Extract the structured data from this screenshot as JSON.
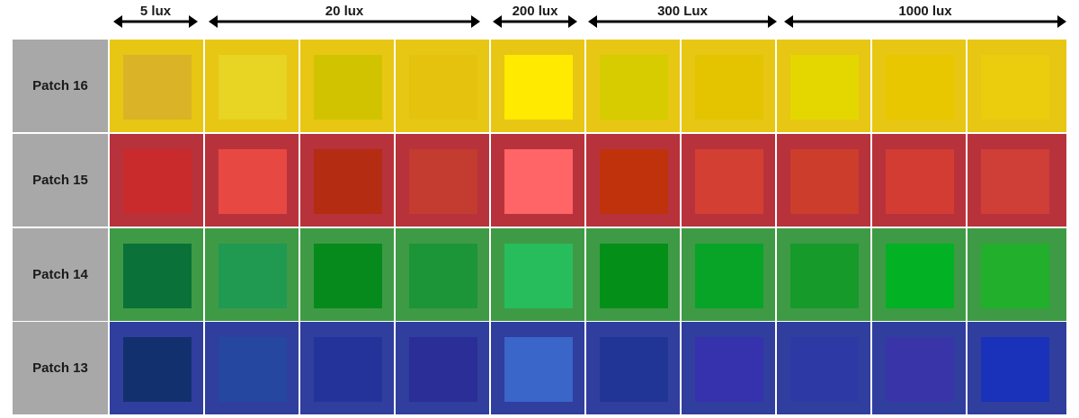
{
  "header": {
    "groups": [
      {
        "label": "5 lux"
      },
      {
        "label": "20 lux"
      },
      {
        "label": "200 lux"
      },
      {
        "label": "300 Lux"
      },
      {
        "label": "1000 lux"
      }
    ]
  },
  "rows": [
    {
      "label": "Patch 16",
      "background": "#e8c614",
      "swatches": [
        "#dab326",
        "#e8d422",
        "#d2c300",
        "#e4c20e",
        "#ffea00",
        "#d6cc00",
        "#e4c300",
        "#e4d700",
        "#e8c600",
        "#ebcd0d"
      ]
    },
    {
      "label": "Patch 15",
      "background": "#b8323c",
      "swatches": [
        "#c92a2c",
        "#e84842",
        "#b42c12",
        "#c43b30",
        "#ff6466",
        "#c0320c",
        "#d43f33",
        "#cc3d2c",
        "#d23c32",
        "#cf3e37"
      ]
    },
    {
      "label": "Patch 14",
      "background": "#3f9a46",
      "swatches": [
        "#0a7139",
        "#1f9a50",
        "#078a1c",
        "#1c9438",
        "#27bd5d",
        "#038f18",
        "#08a428",
        "#169a29",
        "#02b124",
        "#21af2c"
      ]
    },
    {
      "label": "Patch 13",
      "background": "#303e9e",
      "swatches": [
        "#13306e",
        "#25479f",
        "#23339a",
        "#2b2e96",
        "#3a65c9",
        "#213597",
        "#3631ac",
        "#2d3aa6",
        "#3935a8",
        "#1a31b9"
      ]
    }
  ]
}
